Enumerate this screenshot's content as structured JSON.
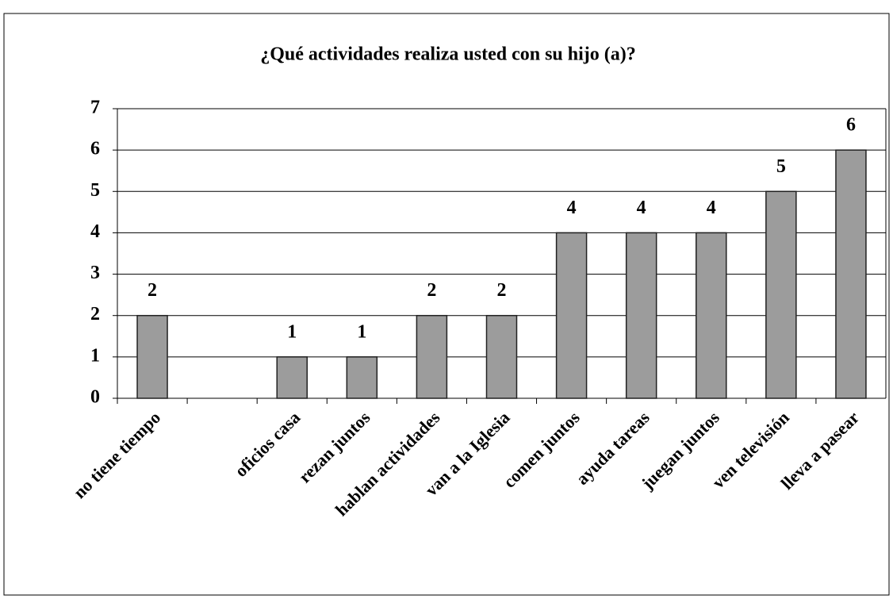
{
  "chart_data": {
    "type": "bar",
    "title": "¿Qué actividades realiza usted con su hijo (a)?",
    "categories": [
      "no tiene tiempo",
      null,
      "oficios casa",
      "rezan juntos",
      "hablan actividades",
      "van a la Iglesia",
      "comen juntos",
      "ayuda tareas",
      "juegan juntos",
      "ven televisión",
      "lleva a pasear"
    ],
    "values": [
      2,
      null,
      1,
      1,
      2,
      2,
      4,
      4,
      4,
      5,
      6
    ],
    "color": "#9c9c9c",
    "ylim": [
      0,
      7
    ],
    "yticks": [
      0,
      1,
      2,
      3,
      4,
      5,
      6,
      7
    ],
    "grid": true
  }
}
